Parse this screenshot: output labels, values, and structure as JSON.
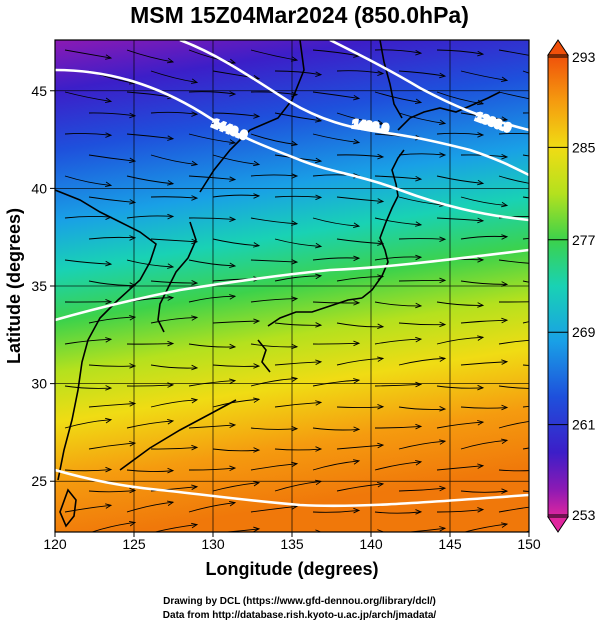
{
  "title": "MSM 15Z04Mar2024 (850.0hPa)",
  "footer": {
    "line1": "Drawing by DCL (https://www.gfd-dennou.org/library/dcl/)",
    "line2": "Data from http://database.rish.kyoto-u.ac.jp/arch/jmadata/"
  },
  "map": {
    "x_axis": {
      "label": "Longitude (degrees)",
      "range": [
        120,
        150
      ],
      "ticks": [
        "120",
        "125",
        "130",
        "135",
        "140",
        "145",
        "150"
      ]
    },
    "y_axis": {
      "label": "Latitude  (degrees)",
      "range": [
        22.4,
        47.6
      ],
      "ticks": [
        "25",
        "30",
        "35",
        "40",
        "45"
      ]
    },
    "colorbar": {
      "range": [
        253,
        293
      ],
      "tick_labels": [
        "293",
        "285",
        "277",
        "269",
        "261",
        "253"
      ],
      "colors": [
        "#e0269e",
        "#8c1ab4",
        "#3c1ec8",
        "#1e50dc",
        "#19a0e6",
        "#19d2b4",
        "#3cd24b",
        "#b4e11e",
        "#f0dc14",
        "#f59b0f",
        "#f0500a"
      ]
    },
    "contours": [
      {
        "label": "1440.0"
      },
      {
        "label": "1400.0"
      },
      {
        "label": "1360.0"
      }
    ]
  }
}
